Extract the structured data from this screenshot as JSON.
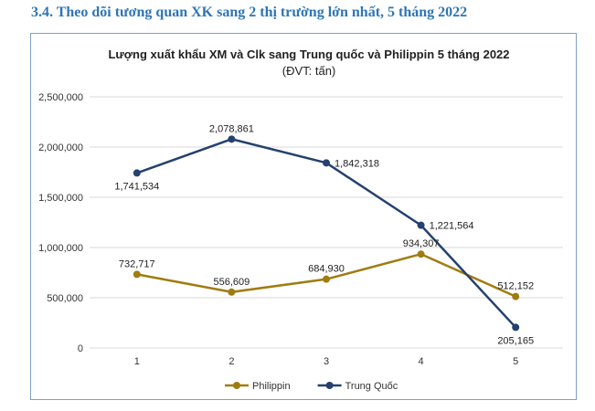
{
  "heading": "3.4. Theo dõi tương quan XK sang 2 thị trường lớn nhất, 5 tháng 2022",
  "chart_data": {
    "type": "line",
    "title": "Lượng xuất khẩu XM và Clk sang Trung quốc và Philippin 5 tháng 2022",
    "subtitle": "(ĐVT: tấn)",
    "xlabel": "",
    "ylabel": "",
    "categories": [
      "1",
      "2",
      "3",
      "4",
      "5"
    ],
    "ylim": [
      0,
      2500000
    ],
    "yticks": [
      0,
      500000,
      1000000,
      1500000,
      2000000,
      2500000
    ],
    "ytick_labels": [
      "0",
      "500,000",
      "1,000,000",
      "1,500,000",
      "2,000,000",
      "2,500,000"
    ],
    "grid": true,
    "legend_position": "bottom",
    "series": [
      {
        "name": "Philippin",
        "color": "#a07c10",
        "values": [
          732717,
          556609,
          684930,
          934307,
          512152
        ],
        "labels": [
          "732,717",
          "556,609",
          "684,930",
          "934,307",
          "512,152"
        ],
        "label_pos": [
          "above",
          "above",
          "above",
          "above",
          "above"
        ]
      },
      {
        "name": "Trung Quốc",
        "color": "#24416f",
        "values": [
          1741534,
          2078861,
          1842318,
          1221564,
          205165
        ],
        "labels": [
          "1,741,534",
          "2,078,861",
          "1,842,318",
          "1,221,564",
          "205,165"
        ],
        "label_pos": [
          "below",
          "above",
          "right",
          "right",
          "below"
        ]
      }
    ]
  }
}
